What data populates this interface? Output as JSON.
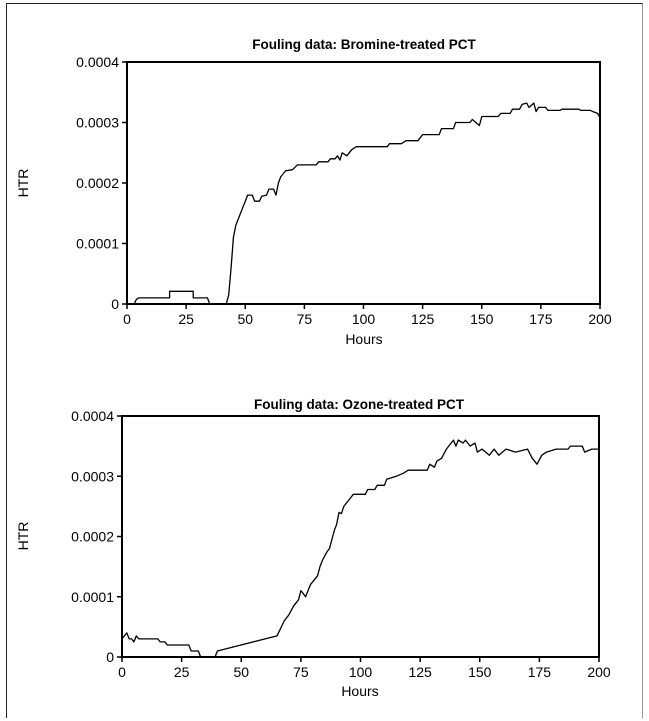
{
  "chart_data": [
    {
      "type": "line",
      "title": "Fouling data: Bromine-treated PCT",
      "xlabel": "Hours",
      "ylabel": "HTR",
      "xlim": [
        0,
        200
      ],
      "ylim": [
        0,
        0.0004
      ],
      "xticks": [
        "0",
        "25",
        "50",
        "75",
        "100",
        "125",
        "150",
        "175",
        "200"
      ],
      "yticks": [
        "0",
        "0.0001",
        "0.0002",
        "0.0003",
        "0.0004"
      ],
      "grid": false,
      "series": [
        {
          "color": "#000000",
          "points": [
            [
              0,
              0
            ],
            [
              3,
              0
            ],
            [
              4,
              8e-06
            ],
            [
              5,
              1e-05
            ],
            [
              18,
              1e-05
            ],
            [
              18,
              2.1e-05
            ],
            [
              28,
              2.1e-05
            ],
            [
              28,
              1e-05
            ],
            [
              34,
              1e-05
            ],
            [
              35,
              0
            ],
            [
              42,
              0
            ],
            [
              43,
              1.5e-05
            ],
            [
              44,
              6e-05
            ],
            [
              45,
              0.00011
            ],
            [
              46,
              0.00013
            ],
            [
              47,
              0.00014
            ],
            [
              48,
              0.00015
            ],
            [
              49,
              0.00016
            ],
            [
              50,
              0.00017
            ],
            [
              51,
              0.00018
            ],
            [
              53,
              0.00018
            ],
            [
              54,
              0.00017
            ],
            [
              56,
              0.00017
            ],
            [
              57,
              0.000178
            ],
            [
              59,
              0.00018
            ],
            [
              60,
              0.00019
            ],
            [
              62,
              0.00019
            ],
            [
              63,
              0.00018
            ],
            [
              64,
              0.0002
            ],
            [
              65,
              0.00021
            ],
            [
              67,
              0.00022
            ],
            [
              70,
              0.000222
            ],
            [
              72,
              0.00023
            ],
            [
              80,
              0.00023
            ],
            [
              81,
              0.000235
            ],
            [
              85,
              0.000235
            ],
            [
              86,
              0.00024
            ],
            [
              88,
              0.00024
            ],
            [
              89,
              0.000245
            ],
            [
              90,
              0.000238
            ],
            [
              91,
              0.00025
            ],
            [
              93,
              0.000245
            ],
            [
              95,
              0.000255
            ],
            [
              97,
              0.00026
            ],
            [
              110,
              0.00026
            ],
            [
              111,
              0.000265
            ],
            [
              116,
              0.000265
            ],
            [
              118,
              0.00027
            ],
            [
              123,
              0.00027
            ],
            [
              125,
              0.00028
            ],
            [
              132,
              0.00028
            ],
            [
              133,
              0.00029
            ],
            [
              138,
              0.00029
            ],
            [
              139,
              0.0003
            ],
            [
              145,
              0.0003
            ],
            [
              146,
              0.000305
            ],
            [
              149,
              0.000295
            ],
            [
              150,
              0.00031
            ],
            [
              157,
              0.00031
            ],
            [
              158,
              0.000315
            ],
            [
              162,
              0.000315
            ],
            [
              163,
              0.000322
            ],
            [
              166,
              0.000322
            ],
            [
              167,
              0.00033
            ],
            [
              169,
              0.000332
            ],
            [
              170,
              0.000325
            ],
            [
              172,
              0.000332
            ],
            [
              173,
              0.000318
            ],
            [
              174,
              0.000325
            ],
            [
              177,
              0.000325
            ],
            [
              178,
              0.00032
            ],
            [
              183,
              0.00032
            ],
            [
              184,
              0.000322
            ],
            [
              191,
              0.000322
            ],
            [
              192,
              0.00032
            ],
            [
              196,
              0.00032
            ],
            [
              197,
              0.000318
            ],
            [
              199,
              0.000315
            ],
            [
              200,
              0.000308
            ]
          ]
        }
      ]
    },
    {
      "type": "line",
      "title": "Fouling data: Ozone-treated PCT",
      "xlabel": "Hours",
      "ylabel": "HTR",
      "xlim": [
        0,
        200
      ],
      "ylim": [
        0,
        0.0004
      ],
      "xticks": [
        "0",
        "25",
        "50",
        "75",
        "100",
        "125",
        "150",
        "175",
        "200"
      ],
      "yticks": [
        "0",
        "0.0001",
        "0.0002",
        "0.0003",
        "0.0004"
      ],
      "grid": false,
      "series": [
        {
          "color": "#000000",
          "points": [
            [
              0,
              3e-05
            ],
            [
              1,
              3.5e-05
            ],
            [
              2,
              4e-05
            ],
            [
              3,
              3e-05
            ],
            [
              4,
              3e-05
            ],
            [
              5,
              2.5e-05
            ],
            [
              6,
              3.5e-05
            ],
            [
              7,
              3e-05
            ],
            [
              15,
              3e-05
            ],
            [
              16,
              2.5e-05
            ],
            [
              18,
              2.5e-05
            ],
            [
              19,
              2e-05
            ],
            [
              28,
              2e-05
            ],
            [
              29,
              1e-05
            ],
            [
              32,
              1e-05
            ],
            [
              33,
              0
            ],
            [
              39,
              0
            ],
            [
              40,
              1e-05
            ],
            [
              65,
              3.5e-05
            ],
            [
              68,
              6e-05
            ],
            [
              70,
              7e-05
            ],
            [
              72,
              8.5e-05
            ],
            [
              73,
              9e-05
            ],
            [
              74,
              9.5e-05
            ],
            [
              75,
              0.00011
            ],
            [
              76,
              0.000105
            ],
            [
              77,
              0.0001
            ],
            [
              79,
              0.00012
            ],
            [
              82,
              0.000135
            ],
            [
              83,
              0.00015
            ],
            [
              84,
              0.00016
            ],
            [
              86,
              0.000175
            ],
            [
              87,
              0.00018
            ],
            [
              89,
              0.00021
            ],
            [
              90,
              0.00022
            ],
            [
              91,
              0.00024
            ],
            [
              92,
              0.000238
            ],
            [
              93,
              0.00025
            ],
            [
              95,
              0.00026
            ],
            [
              97,
              0.00027
            ],
            [
              102,
              0.00027
            ],
            [
              103,
              0.000278
            ],
            [
              106,
              0.000278
            ],
            [
              107,
              0.000285
            ],
            [
              110,
              0.000285
            ],
            [
              111,
              0.000295
            ],
            [
              115,
              0.0003
            ],
            [
              118,
              0.000305
            ],
            [
              120,
              0.00031
            ],
            [
              128,
              0.00031
            ],
            [
              129,
              0.00032
            ],
            [
              131,
              0.000315
            ],
            [
              132,
              0.000325
            ],
            [
              134,
              0.00033
            ],
            [
              136,
              0.000345
            ],
            [
              137,
              0.00035
            ],
            [
              139,
              0.00036
            ],
            [
              140,
              0.00035
            ],
            [
              141,
              0.00036
            ],
            [
              143,
              0.000355
            ],
            [
              144,
              0.00036
            ],
            [
              146,
              0.00035
            ],
            [
              148,
              0.000355
            ],
            [
              149,
              0.00034
            ],
            [
              151,
              0.000345
            ],
            [
              154,
              0.000335
            ],
            [
              156,
              0.000345
            ],
            [
              158,
              0.000335
            ],
            [
              161,
              0.000345
            ],
            [
              165,
              0.00034
            ],
            [
              170,
              0.000345
            ],
            [
              172,
              0.00033
            ],
            [
              174,
              0.00032
            ],
            [
              176,
              0.000335
            ],
            [
              178,
              0.00034
            ],
            [
              182,
              0.000345
            ],
            [
              187,
              0.000345
            ],
            [
              188,
              0.00035
            ],
            [
              193,
              0.00035
            ],
            [
              194,
              0.00034
            ],
            [
              197,
              0.000345
            ],
            [
              200,
              0.000345
            ]
          ]
        }
      ]
    }
  ]
}
